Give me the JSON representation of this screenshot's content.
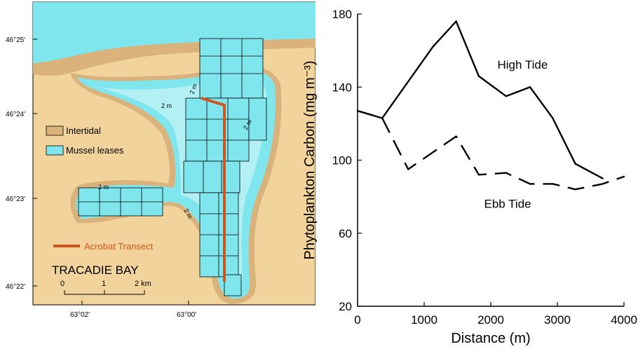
{
  "map": {
    "title": "TRACADIE BAY",
    "legend": [
      {
        "label": "Intertidal",
        "color": "#d9b27c"
      },
      {
        "label": "Mussel leases",
        "color": "#7fe6ee"
      }
    ],
    "transect_label": "Acrobat Transect",
    "transect_color": "#d4541c",
    "scale_ticks": [
      "0",
      "1",
      "2 km"
    ],
    "lat_labels": [
      "46°25'",
      "46°24'",
      "46°23'",
      "46°22'"
    ],
    "lon_labels": [
      "63°02'",
      "63°00'"
    ],
    "depth_labels": [
      "2 m",
      "2 m",
      "2 m",
      "2 m",
      "2 m"
    ],
    "colors": {
      "land": "#f2d39b",
      "intertidal": "#d9b27c",
      "water": "#7fe6ee",
      "deep": "#dff8fa",
      "outline": "#000000"
    }
  },
  "chart_data": {
    "type": "line",
    "xlabel": "Distance (m)",
    "ylabel": "Phytoplankton Carbon (mg m⁻³)",
    "xlim": [
      0,
      4000
    ],
    "ylim": [
      20,
      180
    ],
    "xticks": [
      0,
      1000,
      2000,
      3000,
      4000
    ],
    "yticks": [
      20,
      60,
      100,
      140,
      180
    ],
    "series": [
      {
        "name": "High Tide",
        "style": "solid",
        "x": [
          0,
          370,
          1130,
          1480,
          1820,
          2230,
          2590,
          2930,
          3270,
          3680
        ],
        "y": [
          127,
          123,
          162,
          176,
          146,
          135,
          140,
          123,
          98,
          90
        ]
      },
      {
        "name": "Ebb Tide",
        "style": "dashed",
        "x": [
          0,
          370,
          760,
          1480,
          1820,
          2230,
          2590,
          2930,
          3270,
          3680,
          4000
        ],
        "y": [
          127,
          123,
          95,
          113,
          92,
          93,
          87,
          87,
          84,
          87,
          91
        ]
      }
    ]
  }
}
